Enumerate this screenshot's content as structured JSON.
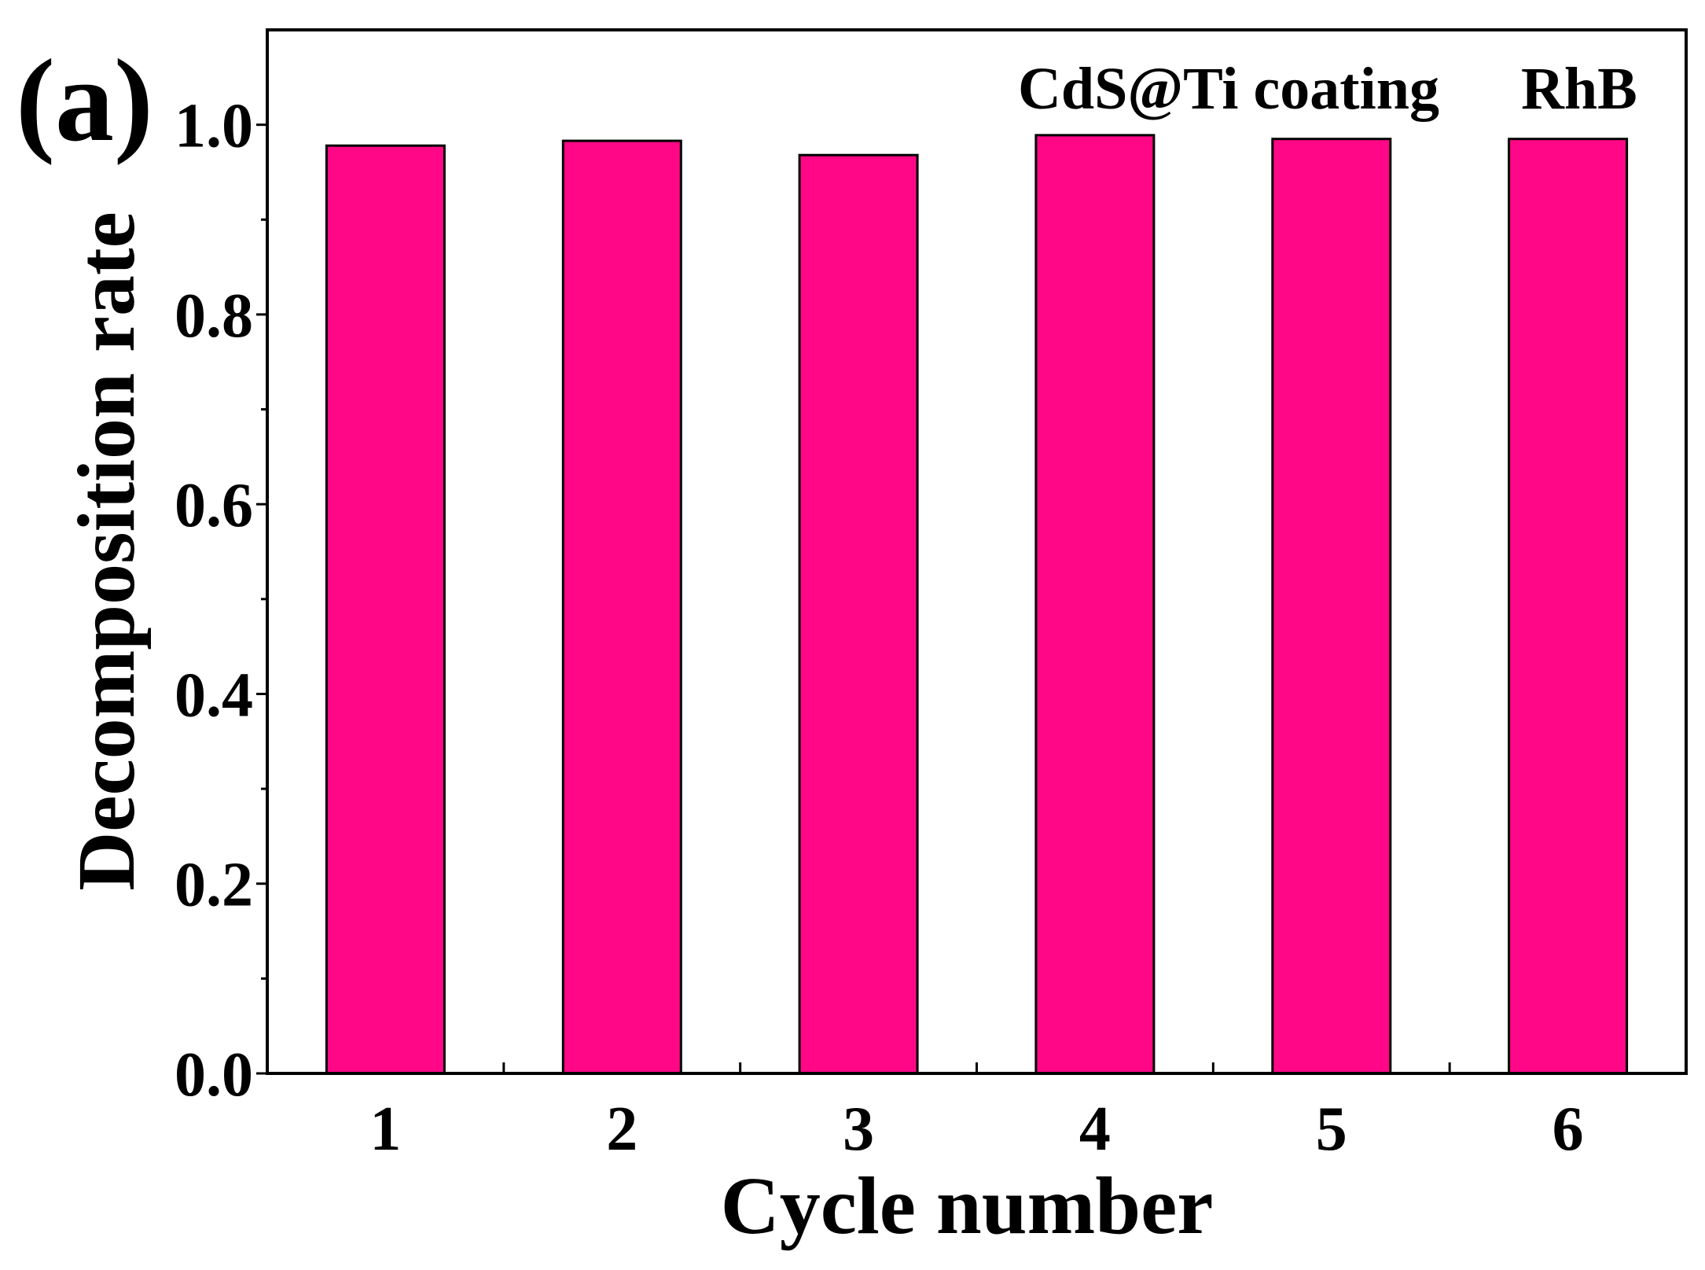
{
  "panel_label": "(a)",
  "chart_data": {
    "type": "bar",
    "title": "",
    "xlabel": "Cycle number",
    "ylabel": "Decomposition rate",
    "categories": [
      "1",
      "2",
      "3",
      "4",
      "5",
      "6"
    ],
    "values": [
      0.978,
      0.983,
      0.968,
      0.989,
      0.985,
      0.985
    ],
    "ylim": [
      0,
      1.1
    ],
    "yticks": [
      "0.0",
      "0.2",
      "0.4",
      "0.6",
      "0.8",
      "1.0"
    ],
    "annotations": [
      "CdS@Ti coating",
      "RhB"
    ],
    "bar_color": "#ff0787",
    "grid": false
  }
}
